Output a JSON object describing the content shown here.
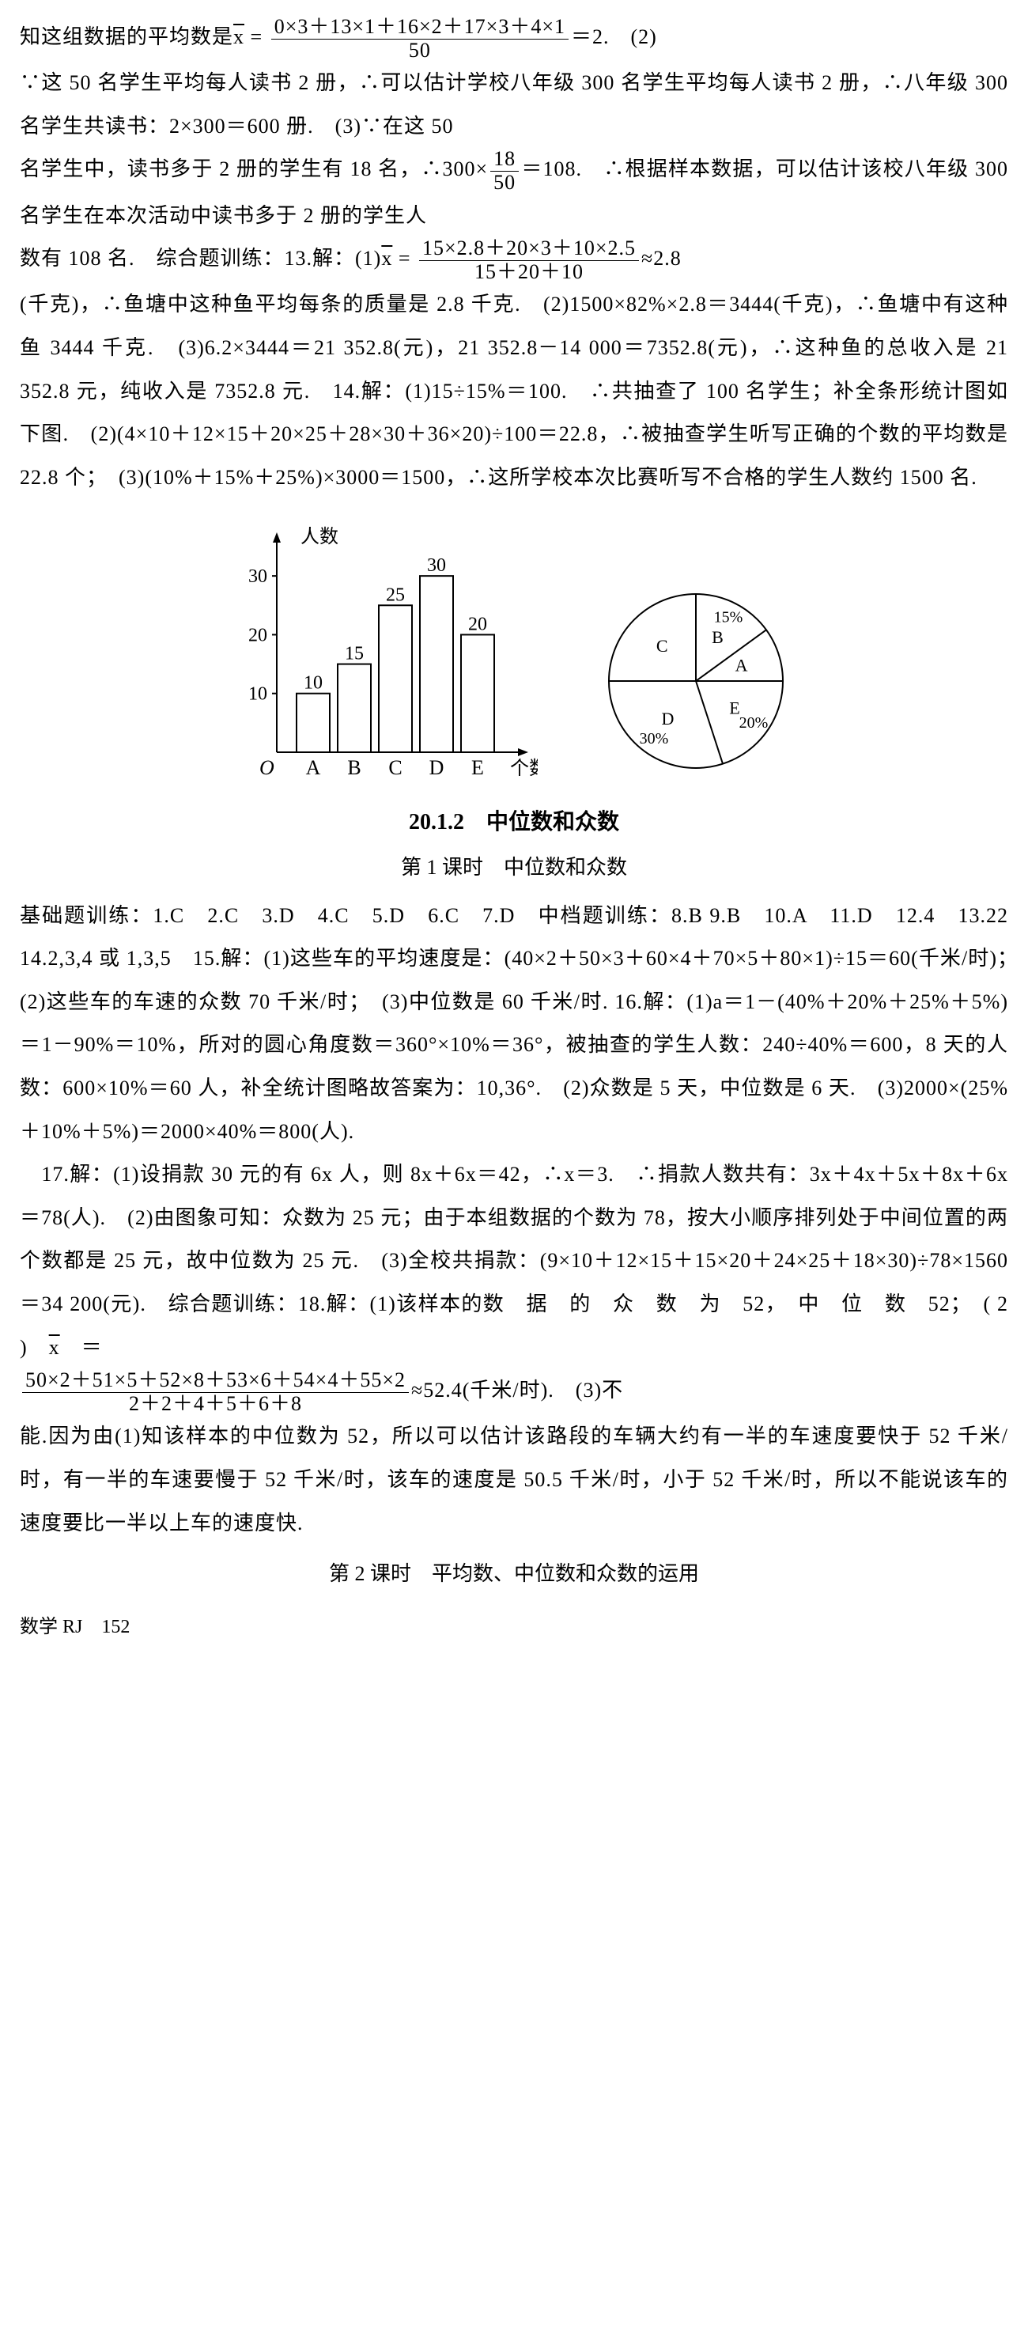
{
  "intro": {
    "pre": "知这组数据的平均数是",
    "eq_var": "x̄ =",
    "frac_num": "0×3＋13×1＋16×2＋17×3＋4×1",
    "frac_den": "50",
    "post": "＝2.　(2)"
  },
  "para1": "∵这 50 名学生平均每人读书 2 册，∴可以估计学校八年级 300 名学生平均每人读书 2 册，∴八年级 300 名学生共读书：2×300＝600 册.　(3)∵在这 50",
  "para2a": "名学生中，读书多于 2 册的学生有 18 名，∴300×",
  "frac2_num": "18",
  "frac2_den": "50",
  "para2b": "＝108.　∴根据样本数据，可以估计该校八年级 300 名学生在本次活动中读书多于 2 册的学生人",
  "para3a": "数有 108 名.　综合题训练：13.解：(1)",
  "para3var": "x̄ =",
  "frac3_num": "15×2.8＋20×3＋10×2.5",
  "frac3_den": "15＋20＋10",
  "para3b": "≈2.8",
  "para4": "(千克)，∴鱼塘中这种鱼平均每条的质量是 2.8 千克.　(2)1500×82%×2.8＝3444(千克)，∴鱼塘中有这种鱼 3444 千克.　(3)6.2×3444＝21 352.8(元)，21 352.8－14 000＝7352.8(元)，∴这种鱼的总收入是 21 352.8 元，纯收入是 7352.8 元.　14.解：(1)15÷15%＝100.　∴共抽查了 100 名学生；补全条形统计图如下图.　(2)(4×10＋12×15＋20×25＋28×30＋36×20)÷100＝22.8，∴被抽查学生听写正确的个数的平均数是 22.8 个；　(3)(10%＋15%＋25%)×3000＝1500，∴这所学校本次比赛听写不合格的学生人数约 1500 名.",
  "barChart": {
    "ylabel": "人数",
    "xlabel": "个数",
    "categories": [
      "A",
      "B",
      "C",
      "D",
      "E"
    ],
    "values": [
      10,
      15,
      25,
      30,
      20
    ],
    "valueLabels": [
      "10",
      "15",
      "25",
      "30",
      "20"
    ],
    "yticks": [
      10,
      20,
      30
    ],
    "ylim": 35,
    "barColor": "#ffffff",
    "stroke": "#000000"
  },
  "pieChart": {
    "slices": [
      {
        "label": "15%",
        "labelKey": "B",
        "start": -90,
        "end": -36
      },
      {
        "label": "",
        "labelKey": "A",
        "start": -36,
        "end": 0
      },
      {
        "label": "20%",
        "labelKey": "E",
        "start": 0,
        "end": 72
      },
      {
        "label": "30%",
        "labelKey": "D",
        "start": 72,
        "end": 180
      },
      {
        "label": "",
        "labelKey": "C",
        "start": 180,
        "end": 270
      }
    ],
    "stroke": "#000000",
    "fill": "#ffffff"
  },
  "section": {
    "title": "20.1.2　中位数和众数",
    "sub1": "第 1 课时　中位数和众数"
  },
  "answers1": "基础题训练：1.C　2.C　3.D　4.C　5.D　6.C　7.D　中档题训练：8.B  9.B　10.A　11.D　12.4　13.22　14.2,3,4 或 1,3,5　15.解：(1)这些车的平均速度是：(40×2＋50×3＋60×4＋70×5＋80×1)÷15＝60(千米/时)；　(2)这些车的车速的众数 70 千米/时；　(3)中位数是 60 千米/时.  16.解：(1)a＝1－(40%＋20%＋25%＋5%)＝1－90%＝10%，所对的圆心角度数＝360°×10%＝36°，被抽查的学生人数：240÷40%＝600，8 天的人数：600×10%＝60 人，补全统计图略故答案为：10,36°.　(2)众数是 5 天，中位数是 6 天.　(3)2000×(25%＋10%＋5%)＝2000×40%＝800(人).",
  "answers2": "　17.解：(1)设捐款 30 元的有 6x 人，则 8x＋6x＝42，∴x＝3.　∴捐款人数共有：3x＋4x＋5x＋8x＋6x＝78(人).　(2)由图象可知：众数为 25 元；由于本组数据的个数为 78，按大小顺序排列处于中间位置的两个数都是 25 元，故中位数为 25 元.　(3)全校共捐款：(9×10＋12×15＋15×20＋24×25＋18×30)÷78×1560＝34 200(元).　综合题训练：18.解：(1)该样本的数　据　的　众　数　为　52，　中　位　数　52；　( 2 )　",
  "answers2var": "x̄　＝",
  "frac4_num": "50×2＋51×5＋52×8＋53×6＋54×4＋55×2",
  "frac4_den": "2＋2＋4＋5＋6＋8",
  "answers2b": "≈52.4(千米/时).　(3)不",
  "answers3": "能.因为由(1)知该样本的中位数为 52，所以可以估计该路段的车辆大约有一半的车速度要快于 52 千米/时，有一半的车速要慢于 52 千米/时，该车的速度是 50.5 千米/时，小于 52 千米/时，所以不能说该车的速度要比一半以上车的速度快.",
  "section2": "第 2 课时　平均数、中位数和众数的运用",
  "footer": "数学 RJ　152"
}
